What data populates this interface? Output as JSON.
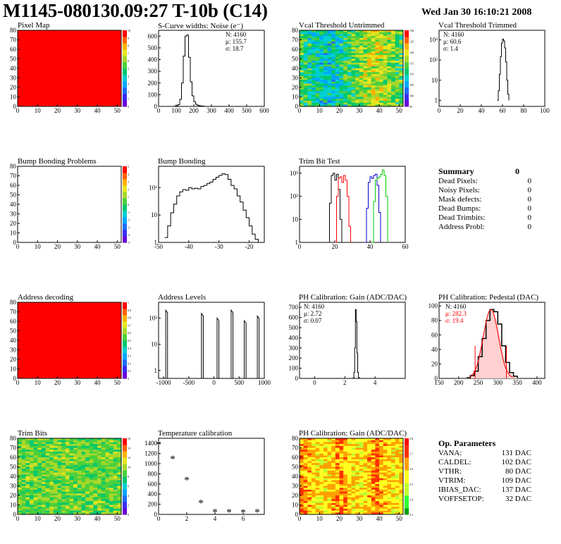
{
  "header": {
    "title": "M1145-080130.09:27 T-10b (C14)",
    "date": "Wed Jan 30 16:10:21 2008"
  },
  "colors": {
    "red": "#ff0000",
    "black_hist": "#000000",
    "trim_blue": "#0000cc",
    "trim_green": "#00cc00",
    "fit_red": "#ff0000"
  },
  "chart_data": [
    {
      "id": "pixel_map",
      "type": "heatmap",
      "title": "Pixel Map",
      "xlim": [
        0,
        52
      ],
      "ylim": [
        0,
        80
      ],
      "xticks": [
        "0",
        "10",
        "20",
        "30",
        "40",
        "50"
      ],
      "yticks": [
        "0",
        "10",
        "20",
        "30",
        "40",
        "50",
        "60",
        "70",
        "80"
      ],
      "uniform_value": 10,
      "colorbar_ticks": [
        "0",
        "1",
        "2",
        "3",
        "4",
        "5",
        "6",
        "7",
        "8",
        "9",
        "10"
      ]
    },
    {
      "id": "scurve_widths",
      "type": "line",
      "title": "S-Curve widths: Noise (e⁻)",
      "xlim": [
        0,
        600
      ],
      "ylim": [
        0,
        650
      ],
      "xticks": [
        "0",
        "100",
        "200",
        "300",
        "400",
        "500",
        "600"
      ],
      "yticks": [
        "0",
        "100",
        "200",
        "300",
        "400",
        "500",
        "600"
      ],
      "stats": [
        "N: 4160",
        "μ: 155.7",
        "σ: 18.7"
      ],
      "x": [
        80,
        90,
        100,
        110,
        120,
        130,
        140,
        150,
        160,
        170,
        180,
        190,
        200,
        210,
        220,
        230,
        240,
        250,
        260
      ],
      "y": [
        0,
        2,
        5,
        15,
        60,
        200,
        430,
        600,
        610,
        420,
        210,
        90,
        40,
        18,
        10,
        6,
        3,
        2,
        0
      ]
    },
    {
      "id": "vcal_untrimmed",
      "type": "heatmap",
      "title": "Vcal Threshold Untrimmed",
      "xlim": [
        0,
        52
      ],
      "ylim": [
        0,
        80
      ],
      "xticks": [
        "0",
        "10",
        "20",
        "30",
        "40",
        "50"
      ],
      "yticks": [
        "0",
        "10",
        "20",
        "30",
        "40",
        "50",
        "60",
        "70",
        "80"
      ],
      "colorbar_ticks": [
        "95",
        "100",
        "105",
        "110",
        "115",
        "120",
        "125",
        "130"
      ]
    },
    {
      "id": "vcal_trimmed",
      "type": "line",
      "title": "Vcal Threshold Trimmed",
      "log_y": true,
      "xlim": [
        0,
        100
      ],
      "ylim": [
        0.5,
        3000
      ],
      "xticks": [
        "0",
        "20",
        "40",
        "60",
        "80",
        "100"
      ],
      "yticks": [
        "1",
        "10",
        "10²",
        "10³"
      ],
      "stats": [
        "N: 4160",
        "μ: 60.6",
        "σ:  1.4"
      ],
      "x": [
        55,
        56,
        57,
        58,
        59,
        60,
        61,
        62,
        63,
        64,
        65,
        66
      ],
      "y": [
        1,
        3,
        20,
        150,
        700,
        1100,
        900,
        400,
        80,
        10,
        2,
        1
      ]
    },
    {
      "id": "bump_bonding_problems",
      "type": "heatmap",
      "title": "Bump Bonding Problems",
      "xlim": [
        0,
        52
      ],
      "ylim": [
        0,
        80
      ],
      "xticks": [
        "0",
        "10",
        "20",
        "30",
        "40",
        "50"
      ],
      "yticks": [
        "0",
        "10",
        "20",
        "30",
        "40",
        "50",
        "60",
        "70",
        "80"
      ],
      "colorbar_ticks": [
        "-5",
        "-4",
        "-3",
        "-2",
        "-1",
        "0",
        "1",
        "2",
        "3",
        "4",
        "5"
      ]
    },
    {
      "id": "bump_bonding",
      "type": "line",
      "title": "Bump Bonding",
      "log_y": true,
      "xlim": [
        -50,
        -15
      ],
      "ylim": [
        1,
        600
      ],
      "xticks": [
        "-50",
        "-40",
        "-30",
        "-20"
      ],
      "yticks": [
        "1",
        "10",
        "10²"
      ],
      "x": [
        -48,
        -47,
        -46,
        -45,
        -44,
        -43,
        -42,
        -41,
        -40,
        -39,
        -38,
        -37,
        -36,
        -35,
        -34,
        -33,
        -32,
        -31,
        -30,
        -29,
        -28,
        -27,
        -26,
        -25,
        -24,
        -23,
        -22,
        -21,
        -20,
        -19,
        -18,
        -17
      ],
      "y": [
        1.5,
        4,
        12,
        25,
        50,
        70,
        85,
        80,
        100,
        90,
        95,
        90,
        110,
        120,
        140,
        160,
        200,
        240,
        280,
        320,
        300,
        200,
        120,
        90,
        50,
        30,
        15,
        8,
        4,
        2,
        1.3,
        1
      ]
    },
    {
      "id": "trim_bit_test",
      "type": "line",
      "title": "Trim Bit Test",
      "log_y": true,
      "xlim": [
        0,
        60
      ],
      "ylim": [
        1,
        2000
      ],
      "xticks": [
        "0",
        "20",
        "40",
        "60"
      ],
      "yticks": [
        "1",
        "10",
        "10²",
        "10³"
      ],
      "series": [
        {
          "color": "black_hist",
          "x": [
            16,
            17,
            18,
            19,
            20,
            21,
            22,
            23,
            24
          ],
          "y": [
            1,
            50,
            800,
            1000,
            500,
            900,
            200,
            10,
            1
          ]
        },
        {
          "color": "red",
          "x": [
            20,
            21,
            22,
            23,
            24,
            25,
            26,
            27,
            28,
            29
          ],
          "y": [
            1,
            100,
            600,
            700,
            400,
            800,
            500,
            100,
            5,
            1
          ]
        },
        {
          "color": "trim_blue",
          "x": [
            37,
            38,
            39,
            40,
            41,
            42,
            43,
            44,
            45,
            46
          ],
          "y": [
            1,
            30,
            400,
            700,
            600,
            800,
            900,
            300,
            20,
            1
          ]
        },
        {
          "color": "trim_green",
          "x": [
            41,
            42,
            43,
            44,
            45,
            46,
            47,
            48,
            49,
            50
          ],
          "y": [
            1,
            60,
            500,
            600,
            700,
            900,
            1400,
            800,
            100,
            1
          ]
        }
      ]
    },
    {
      "id": "address_decoding",
      "type": "heatmap",
      "title": "Address decoding",
      "xlim": [
        0,
        52
      ],
      "ylim": [
        0,
        80
      ],
      "xticks": [
        "0",
        "10",
        "20",
        "30",
        "40",
        "50"
      ],
      "yticks": [
        "0",
        "10",
        "20",
        "30",
        "40",
        "50",
        "60",
        "70",
        "80"
      ],
      "uniform_value": 1,
      "colorbar_ticks": [
        "0",
        "0.1",
        "0.2",
        "0.3",
        "0.4",
        "0.5",
        "0.6",
        "0.7",
        "0.8",
        "0.9",
        "1"
      ]
    },
    {
      "id": "address_levels",
      "type": "line",
      "title": "Address Levels",
      "log_y": true,
      "xlim": [
        -1100,
        1000
      ],
      "ylim": [
        0.5,
        400
      ],
      "xticks": [
        "-1000",
        "-500",
        "0",
        "500",
        "1000"
      ],
      "yticks": [
        "1",
        "10",
        "10²"
      ],
      "peaks_x": [
        -940,
        -230,
        80,
        360,
        620,
        880
      ],
      "peak_heights": [
        200,
        150,
        100,
        200,
        80,
        120
      ]
    },
    {
      "id": "ph_gain",
      "type": "line",
      "title": "PH Calibration: Gain (ADC/DAC)",
      "xlim": [
        -1,
        6
      ],
      "ylim": [
        0,
        750
      ],
      "xticks": [
        "0",
        "2",
        "4"
      ],
      "yticks": [
        "0",
        "100",
        "200",
        "300",
        "400",
        "500",
        "600",
        "700"
      ],
      "stats": [
        "N: 4160",
        "μ: 2.72",
        "σ: 0.07"
      ],
      "x": [
        2.5,
        2.55,
        2.6,
        2.65,
        2.7,
        2.75,
        2.8,
        2.85,
        2.9,
        2.95,
        3.0
      ],
      "y": [
        0,
        5,
        60,
        300,
        680,
        560,
        250,
        60,
        10,
        2,
        0
      ]
    },
    {
      "id": "ph_pedestal",
      "type": "line",
      "title": "PH Calibration: Pedestal (DAC)",
      "xlim": [
        150,
        420
      ],
      "ylim": [
        0,
        105
      ],
      "xticks": [
        "150",
        "200",
        "250",
        "300",
        "350",
        "400"
      ],
      "yticks": [
        "0",
        "20",
        "40",
        "60",
        "80",
        "100"
      ],
      "stats": [
        "N: 4160",
        "μ: 282.3",
        "σ: 19.4"
      ],
      "stats_colors": [
        "black_hist",
        "fit_red",
        "fit_red"
      ],
      "x": [
        220,
        230,
        240,
        250,
        260,
        270,
        280,
        290,
        300,
        310,
        320,
        330,
        340,
        350
      ],
      "y": [
        1,
        4,
        10,
        30,
        55,
        80,
        95,
        92,
        75,
        45,
        22,
        8,
        3,
        1
      ],
      "fit_range": [
        242,
        322
      ]
    },
    {
      "id": "trim_bits",
      "type": "heatmap",
      "title": "Trim Bits",
      "xlim": [
        0,
        52
      ],
      "ylim": [
        0,
        80
      ],
      "xticks": [
        "0",
        "10",
        "20",
        "30",
        "40",
        "50"
      ],
      "yticks": [
        "0",
        "10",
        "20",
        "30",
        "40",
        "50",
        "60",
        "70",
        "80"
      ],
      "colorbar_ticks": [
        "0",
        "2",
        "4",
        "6",
        "8",
        "10",
        "12",
        "14",
        "16"
      ]
    },
    {
      "id": "temperature_calibration",
      "type": "scatter",
      "title": "Temperature calibration",
      "xlim": [
        0,
        7.5
      ],
      "ylim": [
        0,
        1500
      ],
      "xticks": [
        "0",
        "2",
        "4",
        "6"
      ],
      "yticks": [
        "0",
        "200",
        "400",
        "600",
        "800",
        "1000",
        "1200",
        "1400"
      ],
      "x": [
        0,
        1,
        2,
        3,
        4,
        5,
        6,
        7
      ],
      "y": [
        1380,
        1100,
        680,
        230,
        50,
        50,
        40,
        50
      ]
    },
    {
      "id": "ph_gain_map",
      "type": "heatmap",
      "title": "PH Calibration: Gain (ADC/DAC)",
      "xlim": [
        0,
        52
      ],
      "ylim": [
        0,
        80
      ],
      "xticks": [
        "0",
        "10",
        "20",
        "30",
        "40",
        "50"
      ],
      "yticks": [
        "0",
        "10",
        "20",
        "30",
        "40",
        "50",
        "60",
        "70",
        "80"
      ],
      "colorbar_ticks": [
        "2.3",
        "2.4",
        "2.5",
        "2.6",
        "2.7",
        "2.8"
      ]
    }
  ],
  "summary": {
    "title": "Summary",
    "total": "0",
    "rows": [
      {
        "label": "Dead Pixels:",
        "value": "0"
      },
      {
        "label": "Noisy Pixels:",
        "value": "0"
      },
      {
        "label": "Mask defects:",
        "value": "0"
      },
      {
        "label": "Dead Bumps:",
        "value": "0"
      },
      {
        "label": "Dead Trimbits:",
        "value": "0"
      },
      {
        "label": "Address Probl:",
        "value": "0"
      }
    ]
  },
  "op_params": {
    "title": "Op. Parameters",
    "rows": [
      {
        "label": "VANA:",
        "value": "131 DAC"
      },
      {
        "label": "CALDEL:",
        "value": "102 DAC"
      },
      {
        "label": "VTHR:",
        "value": "80 DAC"
      },
      {
        "label": "VTRIM:",
        "value": "109 DAC"
      },
      {
        "label": "IBIAS_DAC:",
        "value": "137 DAC"
      },
      {
        "label": "VOFFSETOP:",
        "value": "32 DAC"
      }
    ]
  }
}
